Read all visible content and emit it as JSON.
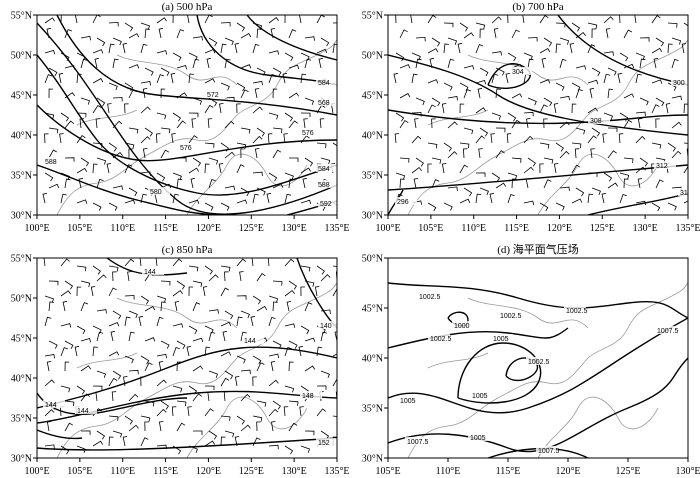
{
  "panels": [
    {
      "title": "(a) 500 hPa",
      "xticks": [
        "100°E",
        "105°E",
        "110°E",
        "115°E",
        "120°E",
        "125°E",
        "130°E",
        "135°E"
      ],
      "yticks": [
        "30°N",
        "35°N",
        "40°N",
        "45°N",
        "50°N",
        "55°N"
      ],
      "contour_labels": [
        "584",
        "568",
        "572",
        "576",
        "576",
        "584",
        "588",
        "592",
        "580",
        "588"
      ]
    },
    {
      "title": "(b) 700 hPa",
      "xticks": [
        "100°E",
        "105°E",
        "110°E",
        "115°E",
        "120°E",
        "125°E",
        "130°E",
        "135°E"
      ],
      "yticks": [
        "30°N",
        "35°N",
        "40°N",
        "45°N",
        "50°N",
        "55°N"
      ],
      "contour_labels": [
        "304",
        "300",
        "308",
        "312",
        "31",
        "296"
      ]
    },
    {
      "title": "(c) 850 hPa",
      "xticks": [
        "100°E",
        "105°E",
        "110°E",
        "115°E",
        "120°E",
        "125°E",
        "130°E",
        "135°E"
      ],
      "yticks": [
        "30°N",
        "35°N",
        "40°N",
        "45°N",
        "50°N",
        "55°N"
      ],
      "contour_labels": [
        "144",
        "140",
        "144",
        "148",
        "144",
        "144",
        "152"
      ]
    },
    {
      "title": "(d) 海平面气压场",
      "xticks": [
        "105°E",
        "110°E",
        "115°E",
        "120°E",
        "125°E",
        "130°E"
      ],
      "yticks": [
        "30°N",
        "35°N",
        "40°N",
        "45°N",
        "50°N"
      ],
      "contour_labels": [
        "1002.5",
        "1002.5",
        "1002.5",
        "1000",
        "1002.5",
        "1005",
        "1002.5",
        "1007.5",
        "1005",
        "1005",
        "1007.5",
        "1005",
        "1007.5"
      ]
    }
  ]
}
